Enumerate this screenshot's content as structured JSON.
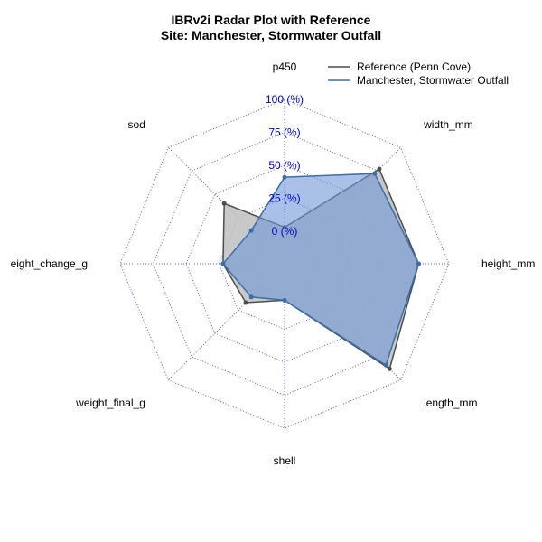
{
  "chart_data": {
    "type": "radar",
    "title": "IBRv2i Radar Plot with Reference",
    "subtitle": "Site: Manchester, Stormwater Outfall",
    "axes": [
      "p450",
      "width_mm",
      "height_mm",
      "length_mm",
      "shell",
      "weight_final_g",
      "eight_change_g",
      "sod"
    ],
    "rlim": [
      0,
      100
    ],
    "ring_labels": [
      "0 (%)",
      "25 (%)",
      "50 (%)",
      "75 (%)",
      "100 (%)"
    ],
    "grid": true,
    "legend_position": "top-right",
    "series": [
      {
        "name": "Reference (Penn Cove)",
        "values": [
          3,
          77,
          77,
          88,
          3,
          17,
          22,
          40
        ],
        "line_color": "#4d4d4d",
        "fill_color": "#bfbfbf"
      },
      {
        "name": "Manchester, Stormwater Outfall",
        "values": [
          41,
          72,
          77,
          84,
          3,
          11,
          22,
          11
        ],
        "line_color": "#3a6ea8",
        "fill_color": "#6f97d6"
      }
    ]
  },
  "colors": {
    "grid": "#5b5bbf",
    "ring_label": "#0000cc"
  }
}
